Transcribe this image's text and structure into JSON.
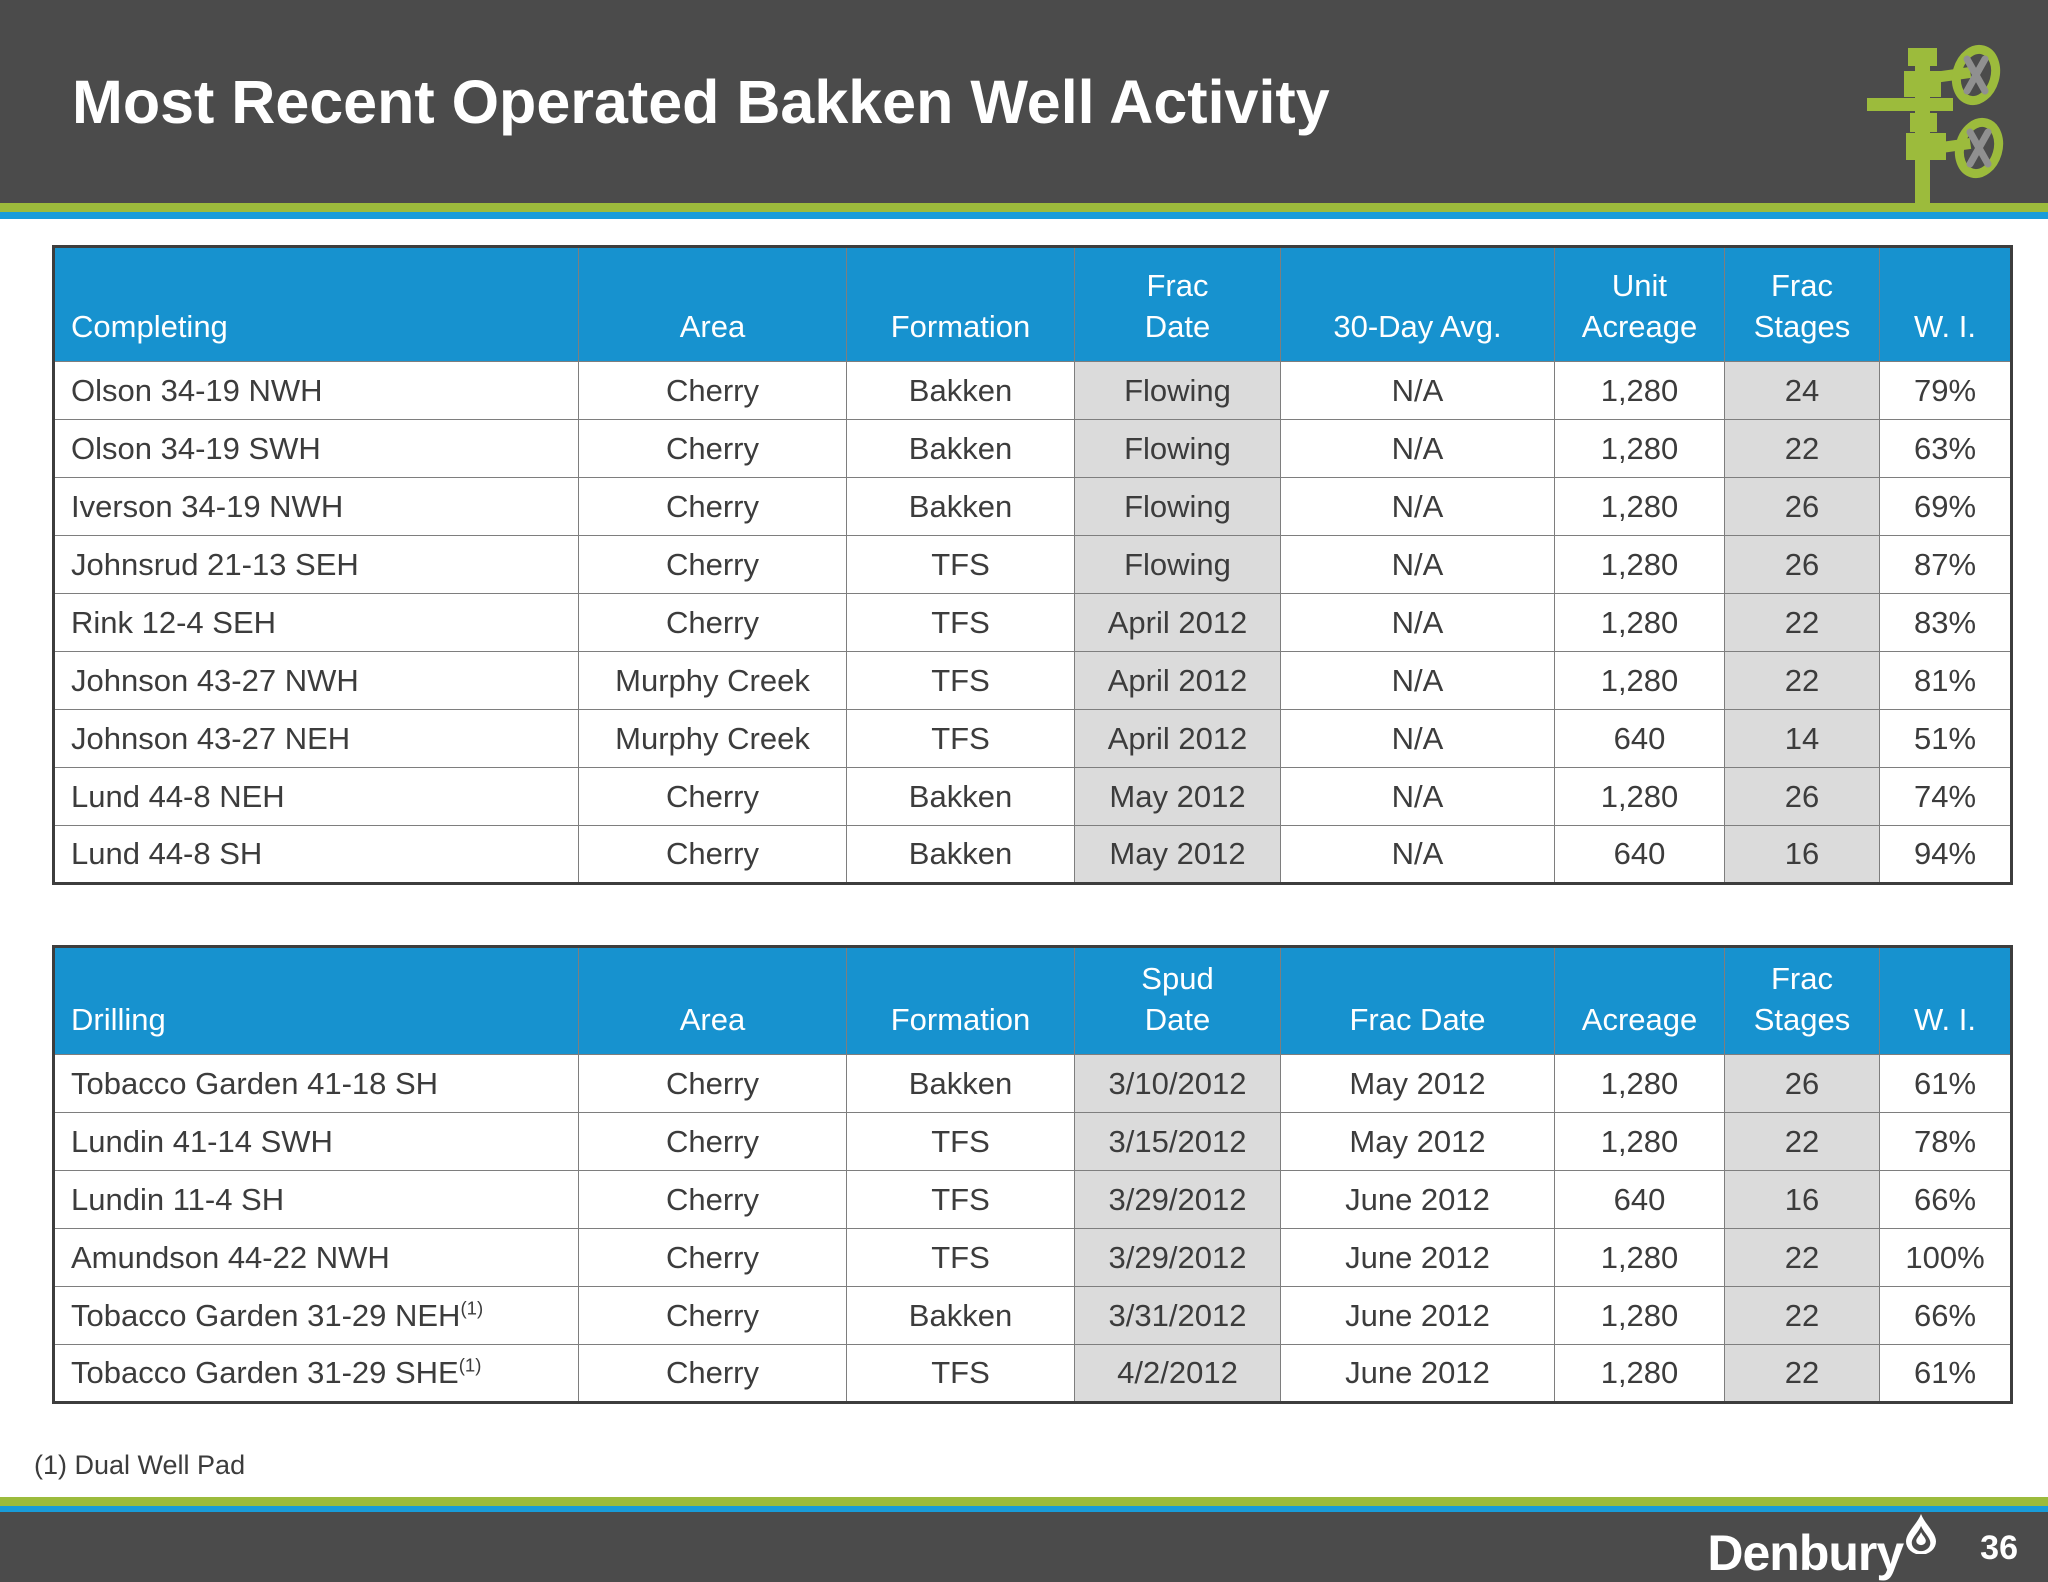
{
  "slide": {
    "title": "Most Recent Operated Bakken Well Activity",
    "footnote": "(1) Dual Well Pad",
    "brand": "Denbury",
    "page_number": "36"
  },
  "icons": {
    "wellhead": "wellhead-valve-icon",
    "droplet": "denbury-droplet-icon"
  },
  "colors": {
    "bar_gray": "#4B4B4B",
    "accent_green": "#9CBB3C",
    "accent_blue": "#189CD9",
    "table_header_blue": "#1792CF",
    "shaded_column_gray": "#DBDBDB"
  },
  "tables": [
    {
      "columns": [
        "Completing",
        "Area",
        "Formation",
        "Frac\nDate",
        "30-Day Avg.",
        "Unit\nAcreage",
        "Frac\nStages",
        "W. I."
      ],
      "col_keys": [
        "well-name",
        "area",
        "formation",
        "frac-date",
        "30-day-avg",
        "unit-acreage",
        "frac-stages",
        "working-interest"
      ],
      "shaded_cols": [
        3,
        6
      ],
      "rows": [
        [
          "Olson 34-19 NWH",
          "Cherry",
          "Bakken",
          "Flowing",
          "N/A",
          "1,280",
          "24",
          "79%"
        ],
        [
          "Olson 34-19 SWH",
          "Cherry",
          "Bakken",
          "Flowing",
          "N/A",
          "1,280",
          "22",
          "63%"
        ],
        [
          "Iverson 34-19 NWH",
          "Cherry",
          "Bakken",
          "Flowing",
          "N/A",
          "1,280",
          "26",
          "69%"
        ],
        [
          "Johnsrud 21-13 SEH",
          "Cherry",
          "TFS",
          "Flowing",
          "N/A",
          "1,280",
          "26",
          "87%"
        ],
        [
          "Rink 12-4 SEH",
          "Cherry",
          "TFS",
          "April 2012",
          "N/A",
          "1,280",
          "22",
          "83%"
        ],
        [
          "Johnson 43-27 NWH",
          "Murphy Creek",
          "TFS",
          "April 2012",
          "N/A",
          "1,280",
          "22",
          "81%"
        ],
        [
          "Johnson 43-27 NEH",
          "Murphy Creek",
          "TFS",
          "April 2012",
          "N/A",
          "640",
          "14",
          "51%"
        ],
        [
          "Lund 44-8 NEH",
          "Cherry",
          "Bakken",
          "May 2012",
          "N/A",
          "1,280",
          "26",
          "74%"
        ],
        [
          "Lund 44-8 SH",
          "Cherry",
          "Bakken",
          "May 2012",
          "N/A",
          "640",
          "16",
          "94%"
        ]
      ]
    },
    {
      "columns": [
        "Drilling",
        "Area",
        "Formation",
        "Spud\nDate",
        "Frac Date",
        "Acreage",
        "Frac\nStages",
        "W. I."
      ],
      "col_keys": [
        "well-name",
        "area",
        "formation",
        "spud-date",
        "frac-date",
        "acreage",
        "frac-stages",
        "working-interest"
      ],
      "shaded_cols": [
        3,
        6
      ],
      "rows": [
        [
          "Tobacco Garden 41-18 SH",
          "Cherry",
          "Bakken",
          "3/10/2012",
          "May 2012",
          "1,280",
          "26",
          "61%"
        ],
        [
          "Lundin 41-14 SWH",
          "Cherry",
          "TFS",
          "3/15/2012",
          "May 2012",
          "1,280",
          "22",
          "78%"
        ],
        [
          "Lundin 11-4 SH",
          "Cherry",
          "TFS",
          "3/29/2012",
          "June 2012",
          "640",
          "16",
          "66%"
        ],
        [
          "Amundson 44-22 NWH",
          "Cherry",
          "TFS",
          "3/29/2012",
          "June 2012",
          "1,280",
          "22",
          "100%"
        ],
        [
          {
            "text": "Tobacco Garden 31-29 NEH",
            "sup": "(1)"
          },
          "Cherry",
          "Bakken",
          "3/31/2012",
          "June 2012",
          "1,280",
          "22",
          "66%"
        ],
        [
          {
            "text": "Tobacco Garden 31-29 SHE",
            "sup": "(1)"
          },
          "Cherry",
          "TFS",
          "4/2/2012",
          "June 2012",
          "1,280",
          "22",
          "61%"
        ]
      ]
    }
  ]
}
